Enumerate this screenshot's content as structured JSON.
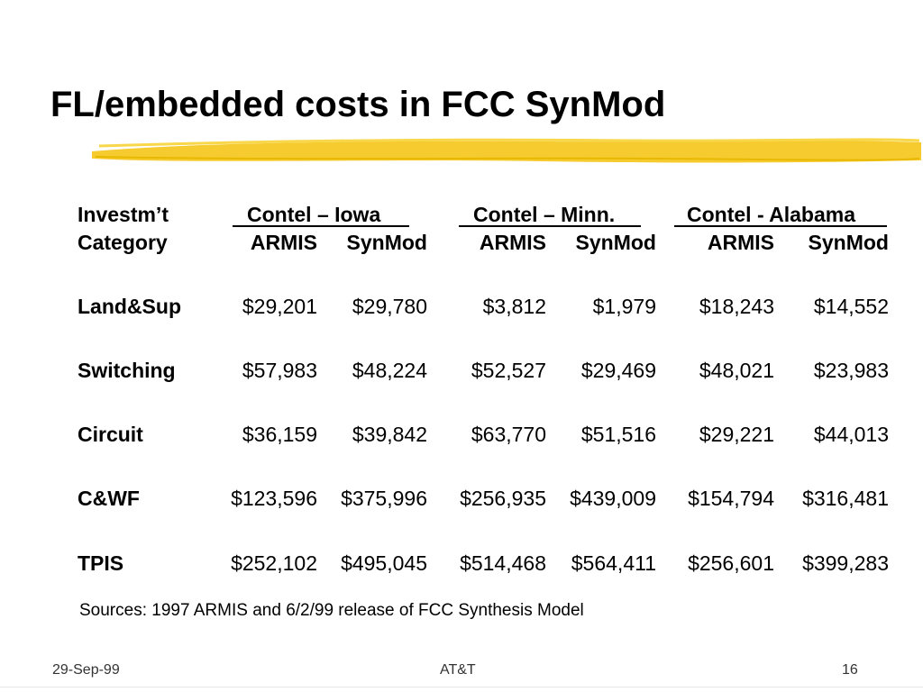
{
  "slide": {
    "title": "FL/embedded costs in FCC SynMod",
    "table": {
      "header_row1": {
        "label": "Investm’t",
        "groups": [
          "Contel – Iowa",
          "Contel – Minn.",
          "Contel - Alabama"
        ]
      },
      "header_row2": {
        "label": "Category",
        "subcolumns": [
          "ARMIS",
          "SynMod",
          "ARMIS",
          "SynMod",
          "ARMIS",
          "SynMod"
        ]
      },
      "rows": [
        {
          "label": "Land&Sup",
          "values": [
            "$29,201",
            "$29,780",
            "$3,812",
            "$1,979",
            "$18,243",
            "$14,552"
          ]
        },
        {
          "label": "Switching",
          "values": [
            "$57,983",
            "$48,224",
            "$52,527",
            "$29,469",
            "$48,021",
            "$23,983"
          ]
        },
        {
          "label": "Circuit",
          "values": [
            "$36,159",
            "$39,842",
            "$63,770",
            "$51,516",
            "$29,221",
            "$44,013"
          ]
        },
        {
          "label": "C&WF",
          "values": [
            "$123,596",
            "$375,996",
            "$256,935",
            "$439,009",
            "$154,794",
            "$316,481"
          ]
        },
        {
          "label": "TPIS",
          "values": [
            "$252,102",
            "$495,045",
            "$514,468",
            "$564,411",
            "$256,601",
            "$399,283"
          ]
        }
      ]
    },
    "sources": "Sources:  1997 ARMIS and 6/2/99 release of FCC Synthesis Model"
  },
  "footer": {
    "date": "29-Sep-99",
    "company": "AT&T",
    "page": "16"
  },
  "colors": {
    "highlight": "#f5c518",
    "text": "#000000"
  }
}
